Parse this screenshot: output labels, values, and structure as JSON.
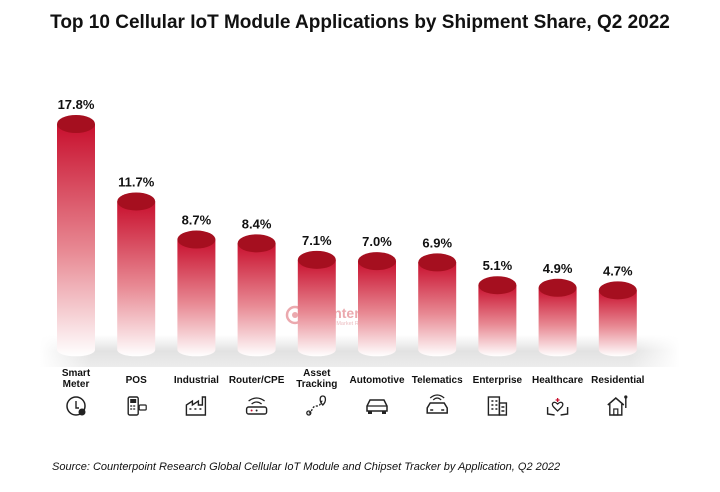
{
  "title": "Top 10 Cellular IoT Module Applications by Shipment Share, Q2 2022",
  "source": "Source: Counterpoint Research Global Cellular IoT Module and Chipset Tracker by Application, Q2 2022",
  "watermark": {
    "name": "Counterpoint",
    "tagline": "Technology Market Research"
  },
  "chart_data": {
    "type": "bar",
    "title": "Top 10 Cellular IoT Module Applications by Shipment Share, Q2 2022",
    "xlabel": "",
    "ylabel": "",
    "ylim": [
      0,
      17.8
    ],
    "grid": false,
    "legend": "none",
    "categories": [
      "Smart Meter",
      "POS",
      "Industrial",
      "Router/CPE",
      "Asset Tracking",
      "Automotive",
      "Telematics",
      "Enterprise",
      "Healthcare",
      "Residential"
    ],
    "category_lines": [
      [
        "Smart",
        "Meter"
      ],
      [
        "POS"
      ],
      [
        "Industrial"
      ],
      [
        "Router/CPE"
      ],
      [
        "Asset",
        "Tracking"
      ],
      [
        "Automotive"
      ],
      [
        "Telematics"
      ],
      [
        "Enterprise"
      ],
      [
        "Healthcare"
      ],
      [
        "Residential"
      ]
    ],
    "values": [
      17.8,
      11.7,
      8.7,
      8.4,
      7.1,
      7.0,
      6.9,
      5.1,
      4.9,
      4.7
    ],
    "value_labels": [
      "17.8%",
      "11.7%",
      "8.7%",
      "8.4%",
      "7.1%",
      "7.0%",
      "6.9%",
      "5.1%",
      "4.9%",
      "4.7%"
    ],
    "icons": [
      "meter-icon",
      "pos-terminal-icon",
      "factory-icon",
      "router-icon",
      "location-route-icon",
      "car-icon",
      "telematics-car-icon",
      "office-building-icon",
      "healthcare-hands-icon",
      "house-icon"
    ],
    "colors": {
      "bar_top": "#c8102e",
      "bar_bottom": "#ffffff",
      "cap": "#a50f1f",
      "floor": "#e6e6e6"
    }
  }
}
